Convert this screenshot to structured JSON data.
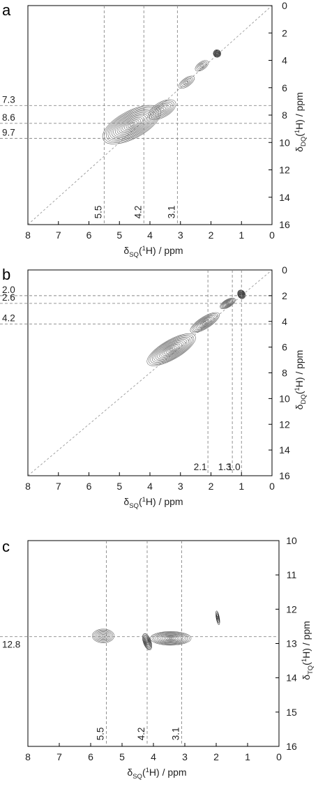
{
  "chart_data": [
    {
      "type": "contour",
      "panel_label": "a",
      "x": {
        "title": "δSQ(1H) / ppm",
        "title_main": "δ",
        "title_sub": "SQ",
        "title_sup_open": "(",
        "title_sup": "1",
        "title_rest": "H) / ppm",
        "range": [
          8,
          0
        ],
        "ticks": [
          8,
          7,
          6,
          5,
          4,
          3,
          2,
          1,
          0
        ],
        "reversed": true
      },
      "y": {
        "title": "δDQ(1H) / ppm",
        "title_main": "δ",
        "title_sub": "DQ",
        "title_sup": "1",
        "title_rest": "H) / ppm",
        "range": [
          0,
          16
        ],
        "ticks": [
          0,
          2,
          4,
          6,
          8,
          10,
          12,
          14,
          16
        ],
        "reversed": true
      },
      "diagonal": {
        "from": [
          8,
          16
        ],
        "to": [
          0,
          0
        ]
      },
      "vertical_guides": [
        {
          "x": 5.5,
          "label": "5.5"
        },
        {
          "x": 4.2,
          "label": "4.2"
        },
        {
          "x": 3.1,
          "label": "3.1"
        }
      ],
      "horizontal_guides": [
        {
          "y": 7.3,
          "label": "7.3"
        },
        {
          "y": 8.6,
          "label": "8.6"
        },
        {
          "y": 9.7,
          "label": "9.7"
        }
      ],
      "peaks": [
        {
          "x": 4.6,
          "y": 8.7,
          "sx": 1.05,
          "sy": 1.0,
          "angle": -28,
          "levels": 16,
          "dark": false
        },
        {
          "x": 3.6,
          "y": 7.6,
          "sx": 0.5,
          "sy": 0.55,
          "angle": -30,
          "levels": 8,
          "dark": false
        },
        {
          "x": 2.8,
          "y": 5.6,
          "sx": 0.3,
          "sy": 0.3,
          "angle": -35,
          "levels": 5,
          "dark": false
        },
        {
          "x": 2.3,
          "y": 4.4,
          "sx": 0.25,
          "sy": 0.28,
          "angle": -35,
          "levels": 5,
          "dark": false
        },
        {
          "x": 1.8,
          "y": 3.5,
          "sx": 0.12,
          "sy": 0.28,
          "angle": -35,
          "levels": 7,
          "dark": true
        }
      ]
    },
    {
      "type": "contour",
      "panel_label": "b",
      "x": {
        "title": "δSQ(1H) / ppm",
        "title_main": "δ",
        "title_sub": "SQ",
        "title_sup": "1",
        "title_rest": "H) / ppm",
        "range": [
          8,
          0
        ],
        "ticks": [
          8,
          7,
          6,
          5,
          4,
          3,
          2,
          1,
          0
        ],
        "reversed": true
      },
      "y": {
        "title": "δDQ(1H) / ppm",
        "title_main": "δ",
        "title_sub": "DQ",
        "title_sup": "1",
        "title_rest": "H) / ppm",
        "range": [
          0,
          16
        ],
        "ticks": [
          0,
          2,
          4,
          6,
          8,
          10,
          12,
          14,
          16
        ],
        "reversed": true
      },
      "diagonal": {
        "from": [
          8,
          16
        ],
        "to": [
          0,
          0
        ]
      },
      "vertical_guides": [
        {
          "x": 2.1,
          "label": "2.1"
        },
        {
          "x": 1.3,
          "label": "1.3"
        },
        {
          "x": 1.0,
          "label": "1.0"
        }
      ],
      "horizontal_guides": [
        {
          "y": 2.0,
          "label": "2.0"
        },
        {
          "y": 2.6,
          "label": "2.6"
        },
        {
          "y": 4.2,
          "label": "4.2"
        }
      ],
      "peaks": [
        {
          "x": 3.3,
          "y": 6.2,
          "sx": 0.9,
          "sy": 0.75,
          "angle": -30,
          "levels": 14,
          "dark": false
        },
        {
          "x": 2.2,
          "y": 4.1,
          "sx": 0.55,
          "sy": 0.45,
          "angle": -32,
          "levels": 10,
          "dark": false
        },
        {
          "x": 1.45,
          "y": 2.6,
          "sx": 0.28,
          "sy": 0.3,
          "angle": -30,
          "levels": 9,
          "dark": false
        },
        {
          "x": 1.0,
          "y": 1.9,
          "sx": 0.12,
          "sy": 0.35,
          "angle": -30,
          "levels": 8,
          "dark": true
        }
      ]
    },
    {
      "type": "contour",
      "panel_label": "c",
      "x": {
        "title": "δSQ(1H) / ppm",
        "title_main": "δ",
        "title_sub": "SQ",
        "title_sup": "1",
        "title_rest": "H) / ppm",
        "range": [
          8,
          0
        ],
        "ticks": [
          8,
          7,
          6,
          5,
          4,
          3,
          2,
          1,
          0
        ],
        "reversed": true
      },
      "y": {
        "title": "δTQ(1H) / ppm",
        "title_main": "δ",
        "title_sub": "TQ",
        "title_sup": "1",
        "title_rest": "H) / ppm",
        "range": [
          10,
          16
        ],
        "ticks": [
          10,
          11,
          12,
          13,
          14,
          15,
          16
        ],
        "reversed": true
      },
      "vertical_guides": [
        {
          "x": 5.5,
          "label": "5.5"
        },
        {
          "x": 4.2,
          "label": "4.2"
        },
        {
          "x": 3.1,
          "label": "3.1"
        }
      ],
      "horizontal_guides": [
        {
          "y": 12.8,
          "label": "12.8"
        }
      ],
      "peaks": [
        {
          "x": 5.6,
          "y": 12.78,
          "sx": 0.35,
          "sy": 0.2,
          "angle": 0,
          "levels": 8,
          "dark": false
        },
        {
          "x": 4.2,
          "y": 12.95,
          "sx": 0.12,
          "sy": 0.25,
          "angle": -20,
          "levels": 7,
          "dark": true
        },
        {
          "x": 3.45,
          "y": 12.85,
          "sx": 0.65,
          "sy": 0.2,
          "angle": 0,
          "levels": 12,
          "dark": false
        },
        {
          "x": 1.95,
          "y": 12.25,
          "sx": 0.05,
          "sy": 0.2,
          "angle": -10,
          "levels": 4,
          "dark": true
        }
      ]
    }
  ]
}
